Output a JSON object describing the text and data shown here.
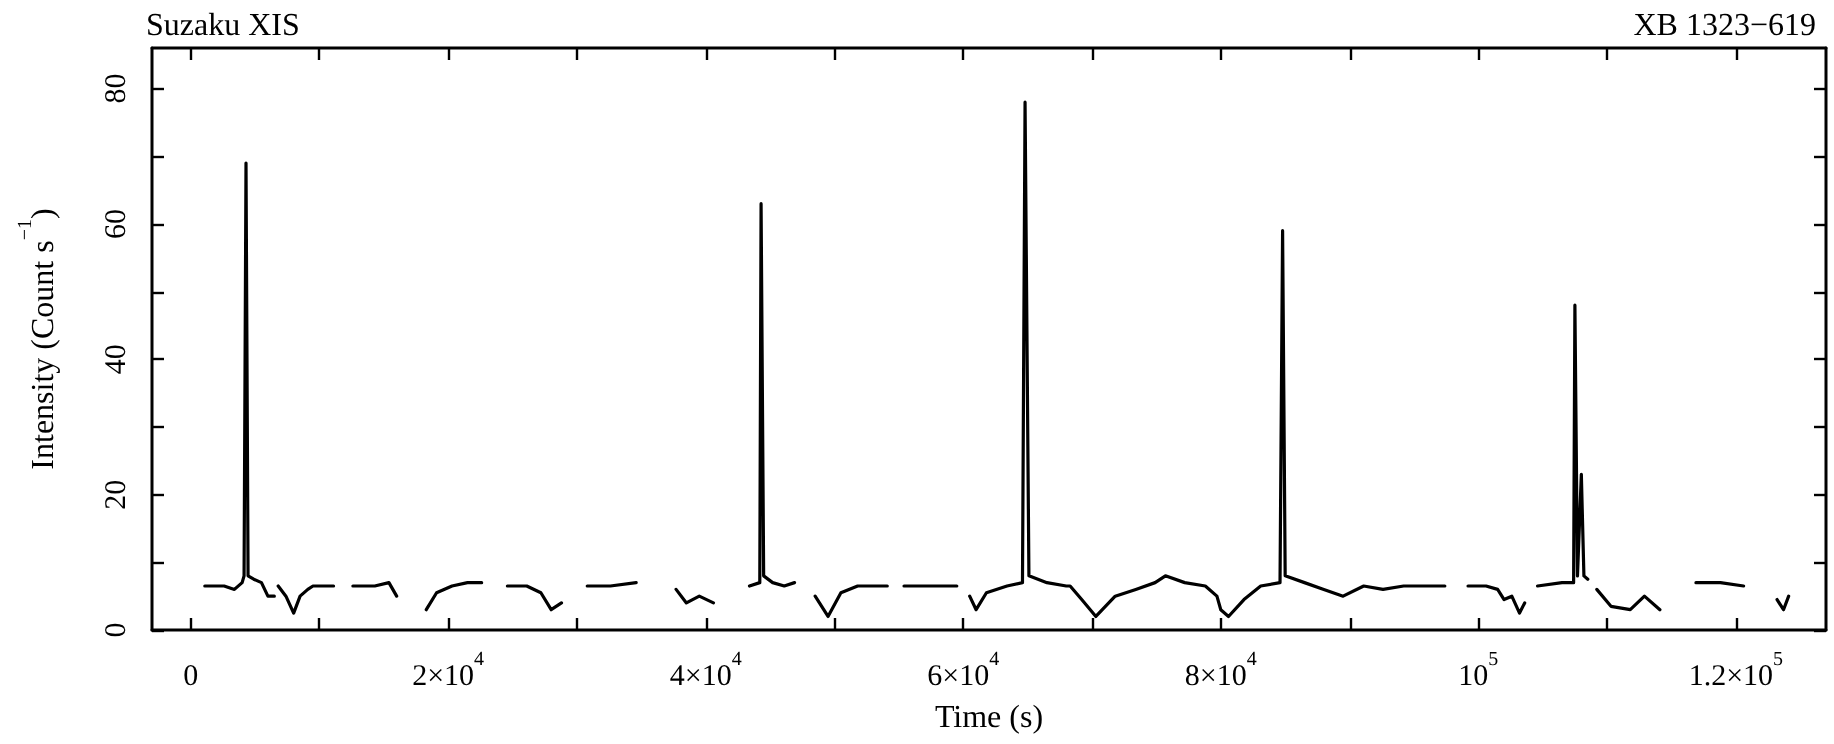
{
  "chart_data": {
    "type": "line",
    "title": "Suzaku XIS",
    "subtitle": "XB 1323−619",
    "xlabel": "Time (s)",
    "ylabel": "Intensity (Count s$^{−1}$)",
    "color": "#000000",
    "x": [
      1100,
      1800,
      2600,
      3400,
      4000,
      4150,
      4300,
      4460,
      4900,
      5500,
      6000,
      6500,
      6600,
      6800,
      7400,
      8000,
      8500,
      9100,
      9500,
      10300,
      11100,
      11800,
      12600,
      14300,
      15400,
      16000,
      16800,
      18300,
      19100,
      20300,
      21500,
      22600,
      23500,
      24600,
      26100,
      27200,
      28000,
      28800,
      29500,
      30800,
      32600,
      34600,
      35500,
      37700,
      38500,
      39500,
      40600,
      41500,
      43400,
      44200,
      44300,
      44500,
      45200,
      46100,
      46900,
      47700,
      48500,
      49500,
      50500,
      51800,
      54100,
      54800,
      55400,
      57500,
      59500,
      60200,
      60500,
      61000,
      61800,
      63400,
      64600,
      64800,
      65100,
      66500,
      68000,
      68300,
      69200,
      70300,
      71800,
      73400,
      74900,
      75700,
      77200,
      78800,
      79700,
      80000,
      80600,
      81800,
      83100,
      84600,
      84800,
      85000,
      86500,
      88000,
      89500,
      91100,
      92600,
      94200,
      95600,
      96500,
      97400,
      98000,
      99200,
      100600,
      101500,
      102000,
      102600,
      103200,
      103600,
      104000,
      104600,
      106500,
      107400,
      107500,
      107700,
      108000,
      108200,
      108500,
      109000,
      109200,
      110300,
      111800,
      112900,
      114100,
      115500,
      116900,
      118800,
      120600,
      122500,
      123200,
      123700,
      124100
    ],
    "values": [
      6.5,
      6.5,
      6.5,
      6,
      7,
      8,
      69,
      8,
      7.5,
      7,
      5,
      5,
      null,
      6.5,
      5,
      2.5,
      5,
      6,
      6.5,
      6.5,
      6.5,
      null,
      6.5,
      6.5,
      7,
      5,
      null,
      3,
      5.5,
      6.5,
      7,
      7,
      null,
      6.5,
      6.5,
      5.5,
      3,
      4,
      null,
      6.5,
      6.5,
      7,
      null,
      6,
      4,
      5,
      4,
      null,
      6.5,
      7,
      63,
      8,
      7,
      6.5,
      7,
      null,
      5,
      2,
      5.5,
      6.5,
      6.5,
      null,
      6.5,
      6.5,
      6.5,
      null,
      5,
      3,
      5.5,
      6.5,
      7,
      78,
      8,
      7,
      6.5,
      6.5,
      4.5,
      2,
      5,
      6,
      7,
      8,
      7,
      6.5,
      5,
      3,
      2,
      4.5,
      6.5,
      7,
      59,
      8,
      7,
      6,
      5,
      6.5,
      6,
      6.5,
      6.5,
      6.5,
      6.5,
      null,
      6.5,
      6.5,
      6,
      4.5,
      5,
      2.5,
      4,
      null,
      6.5,
      7,
      7,
      48,
      8,
      23,
      8,
      7.5,
      null,
      6,
      3.5,
      3,
      5,
      3,
      null,
      7,
      7,
      6.5,
      null,
      4.5,
      3,
      5
    ],
    "xlim": [
      -3000,
      127000
    ],
    "xticks": [
      0,
      {
        "value": 10000,
        "label": null
      },
      {
        "value": 20000,
        "label": "2×10$^{4}$"
      },
      {
        "value": 30000,
        "label": null
      },
      {
        "value": 40000,
        "label": "4×10$^{4}$"
      },
      {
        "value": 50000,
        "label": null
      },
      {
        "value": 60000,
        "label": "6×10$^{4}$"
      },
      {
        "value": 70000,
        "label": null
      },
      {
        "value": 80000,
        "label": "8×10$^{4}$"
      },
      {
        "value": 90000,
        "label": null
      },
      {
        "value": 100000,
        "label": "10$^{5}$"
      },
      {
        "value": 110000,
        "label": null
      },
      {
        "value": 120000,
        "label": "1.2×10$^{5}$"
      }
    ],
    "ylim": [
      0,
      86
    ],
    "yticks": [
      0,
      {
        "value": 10,
        "label": null
      },
      20,
      {
        "value": 30,
        "label": null
      },
      40,
      {
        "value": 50,
        "label": null
      },
      60,
      {
        "value": 70,
        "label": null
      },
      80
    ],
    "grid": false,
    "marker": "none",
    "line_style": "solid"
  }
}
